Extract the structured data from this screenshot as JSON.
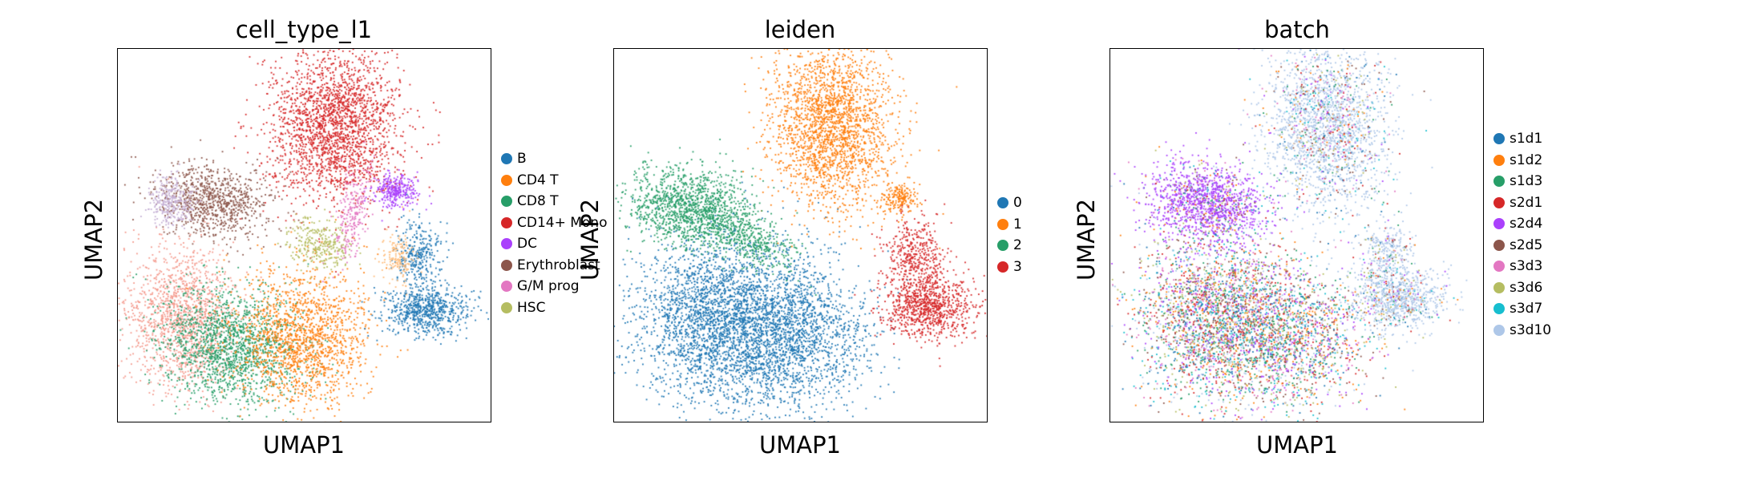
{
  "chart_data": [
    {
      "type": "scatter",
      "title": "cell_type_l1",
      "xlabel": "UMAP1",
      "ylabel": "UMAP2",
      "grid": false,
      "legend": "right",
      "x_ticks": false,
      "y_ticks": false,
      "series": [
        {
          "name": "B",
          "color": "#1f77b4"
        },
        {
          "name": "CD4 T",
          "color": "#ff7f0e"
        },
        {
          "name": "CD8 T",
          "color": "#279e68"
        },
        {
          "name": "CD14+ Mono",
          "color": "#d62728"
        },
        {
          "name": "DC",
          "color": "#aa40fc"
        },
        {
          "name": "Erythroblast",
          "color": "#8c564b"
        },
        {
          "name": "G/M prog",
          "color": "#e377c2"
        },
        {
          "name": "HSC",
          "color": "#b5bd61"
        }
      ]
    },
    {
      "type": "scatter",
      "title": "leiden",
      "xlabel": "UMAP1",
      "ylabel": "UMAP2",
      "grid": false,
      "legend": "right",
      "x_ticks": false,
      "y_ticks": false,
      "series": [
        {
          "name": "0",
          "color": "#1f77b4"
        },
        {
          "name": "1",
          "color": "#ff7f0e"
        },
        {
          "name": "2",
          "color": "#279e68"
        },
        {
          "name": "3",
          "color": "#d62728"
        }
      ]
    },
    {
      "type": "scatter",
      "title": "batch",
      "xlabel": "UMAP1",
      "ylabel": "UMAP2",
      "grid": false,
      "legend": "right",
      "x_ticks": false,
      "y_ticks": false,
      "series": [
        {
          "name": "s1d1",
          "color": "#1f77b4"
        },
        {
          "name": "s1d2",
          "color": "#ff7f0e"
        },
        {
          "name": "s1d3",
          "color": "#279e68"
        },
        {
          "name": "s2d1",
          "color": "#d62728"
        },
        {
          "name": "s2d4",
          "color": "#aa40fc"
        },
        {
          "name": "s2d5",
          "color": "#8c564b"
        },
        {
          "name": "s3d3",
          "color": "#e377c2"
        },
        {
          "name": "s3d6",
          "color": "#b5bd61"
        },
        {
          "name": "s3d7",
          "color": "#17becf"
        },
        {
          "name": "s3d10",
          "color": "#aec7e8"
        }
      ]
    }
  ]
}
